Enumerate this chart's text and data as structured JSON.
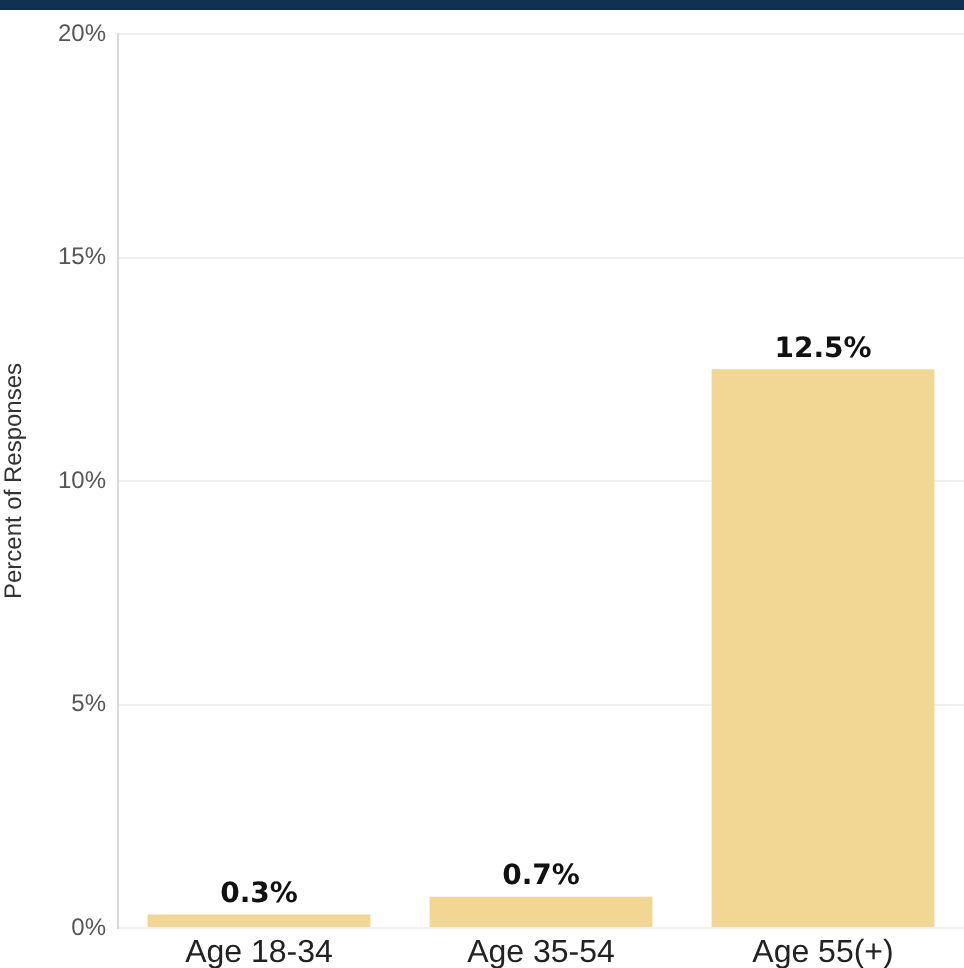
{
  "chart_data": {
    "type": "bar",
    "ylabel": "Percent of Responses",
    "categories": [
      "Age 18-34",
      "Age 35-54",
      "Age 55(+)"
    ],
    "values": [
      0.3,
      0.7,
      12.5
    ],
    "color": "#f2d794",
    "value_labels": [
      "0.3%",
      "0.7%",
      "12.5%"
    ],
    "ylim": [
      0,
      20
    ],
    "yticks": [
      {
        "value": 0,
        "label": "0%"
      },
      {
        "value": 5,
        "label": "5%"
      },
      {
        "value": 10,
        "label": "10%"
      },
      {
        "value": 15,
        "label": "15%"
      },
      {
        "value": 20,
        "label": "20%"
      }
    ],
    "grid": "y"
  }
}
